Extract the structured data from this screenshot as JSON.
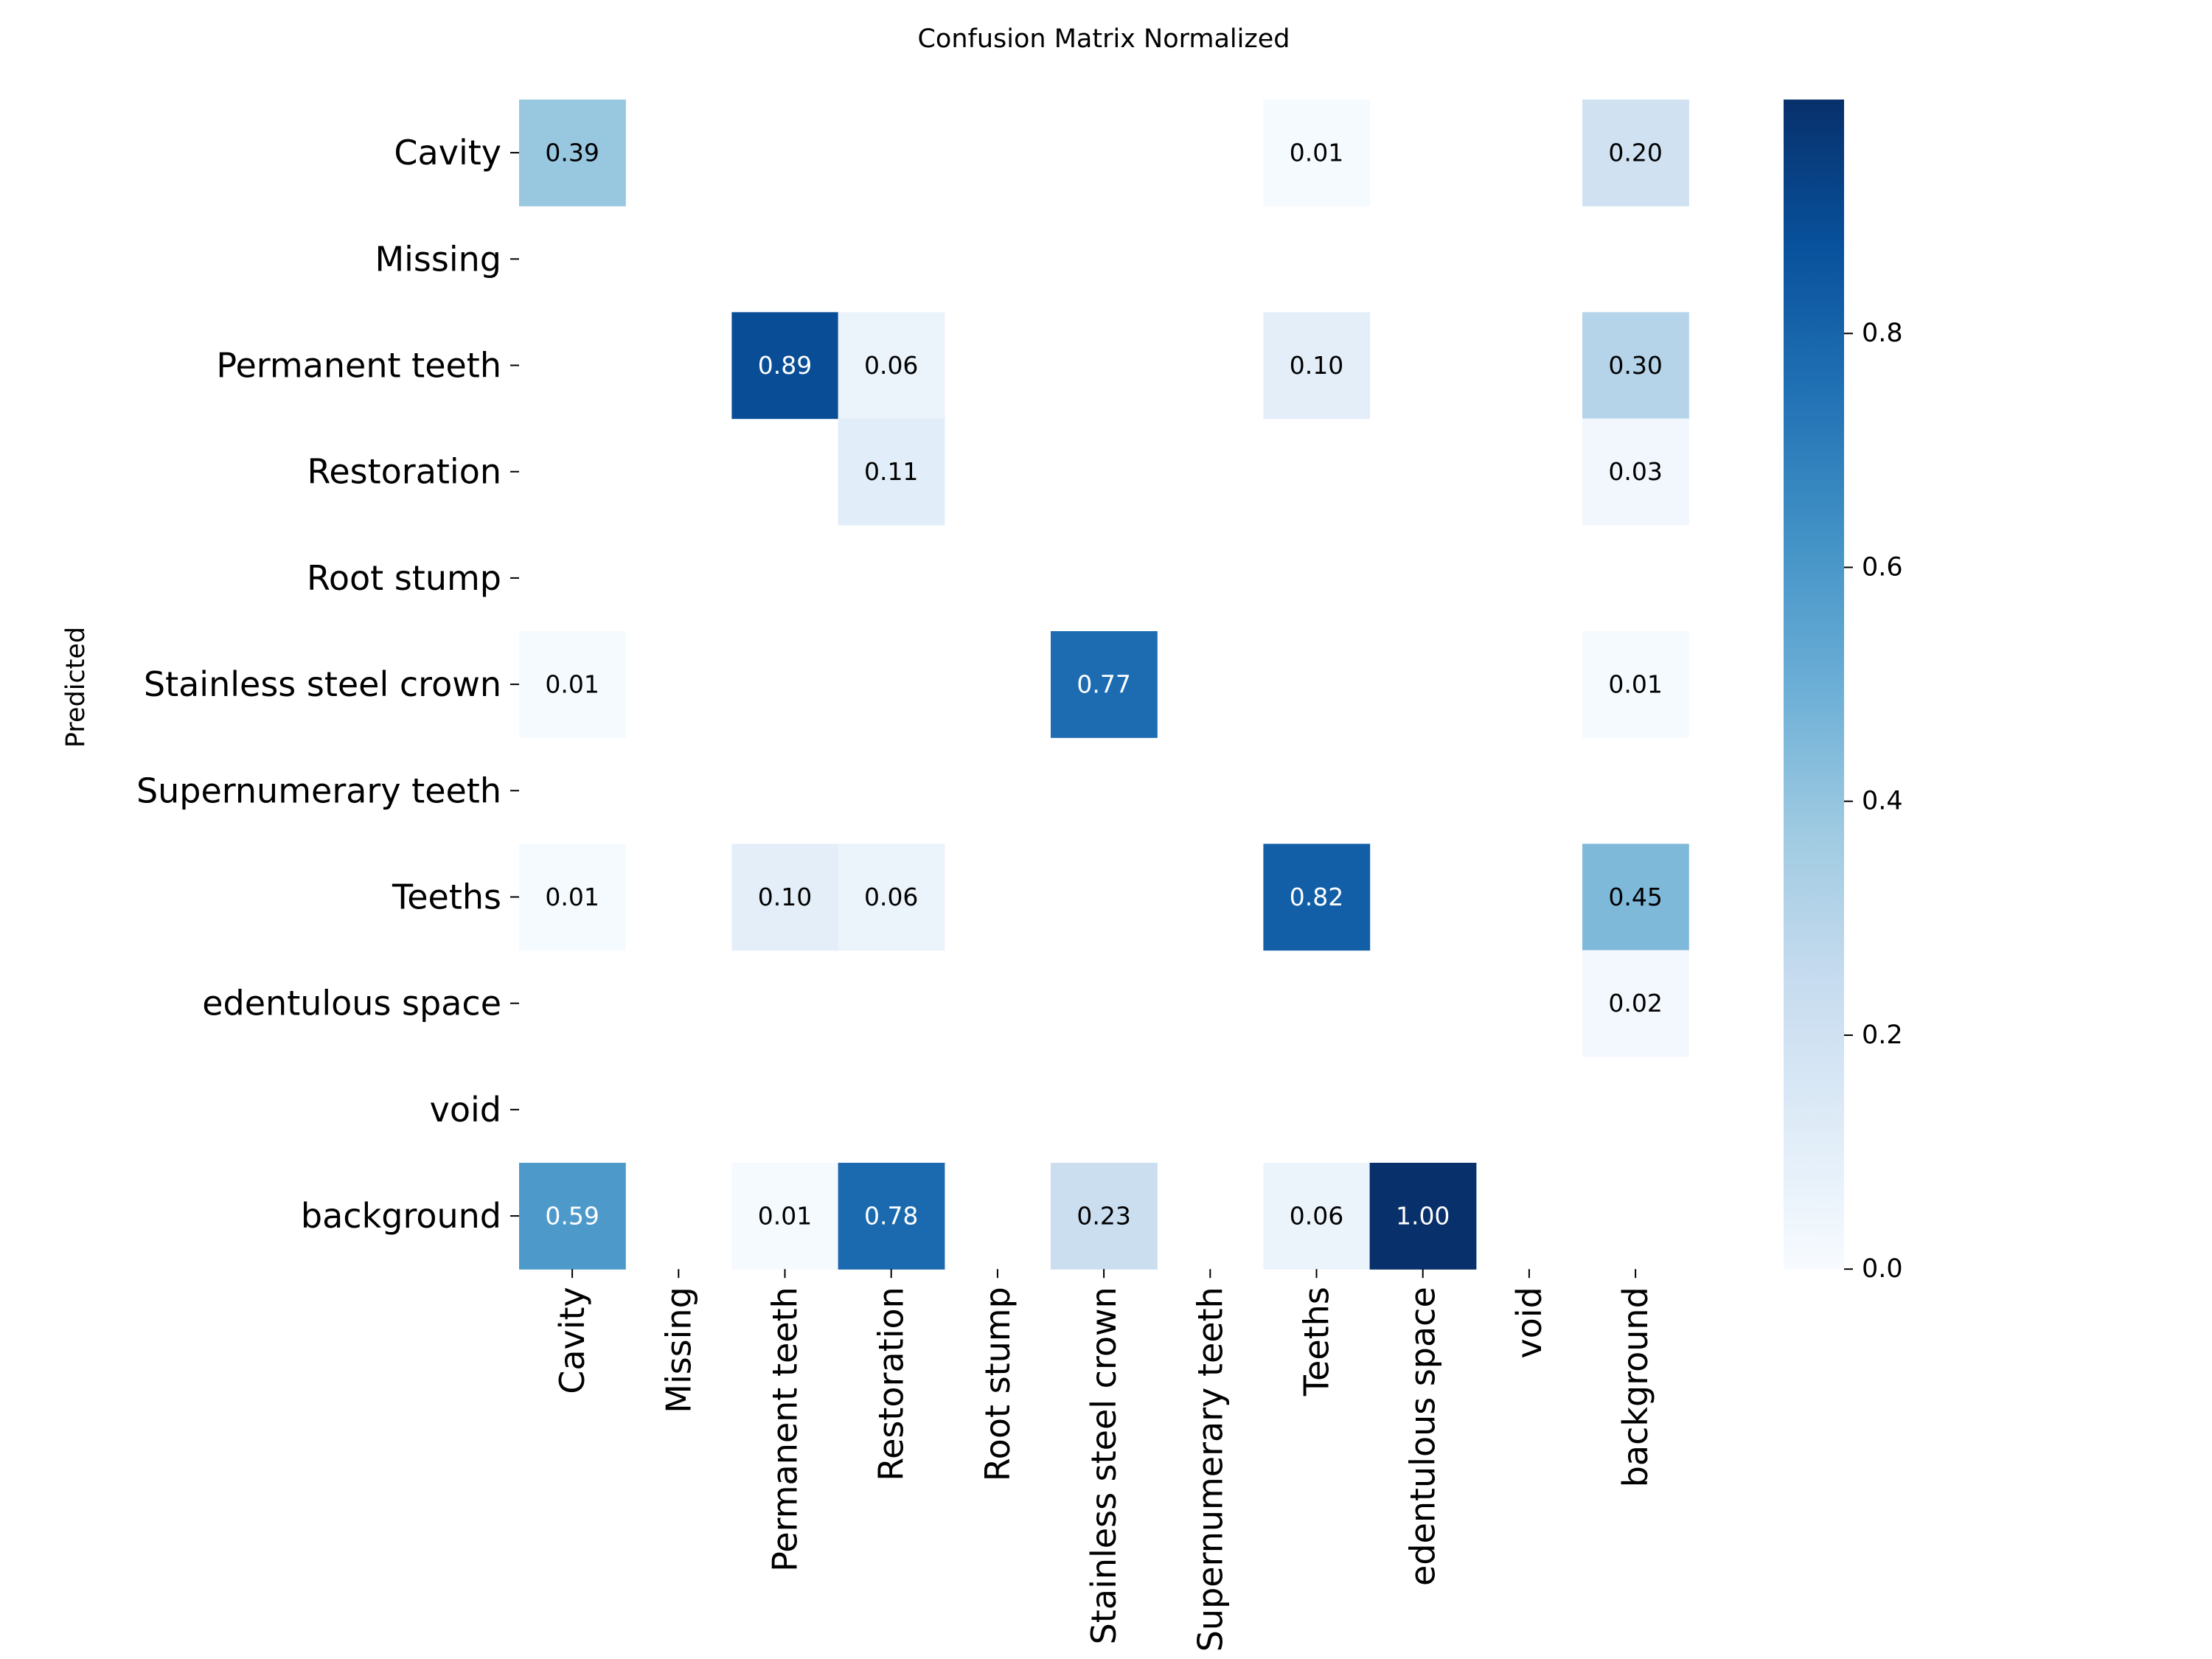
{
  "chart_data": {
    "type": "heatmap",
    "title": "Confusion Matrix Normalized",
    "ylabel": "Predicted",
    "xlabel": "",
    "row_labels": [
      "Cavity",
      "Missing",
      "Permanent teeth",
      "Restoration",
      "Root stump",
      "Stainless steel crown",
      "Supernumerary teeth",
      "Teeths",
      "edentulous space",
      "void",
      "background"
    ],
    "col_labels": [
      "Cavity",
      "Missing",
      "Permanent teeth",
      "Restoration",
      "Root stump",
      "Stainless steel crown",
      "Supernumerary teeth",
      "Teeths",
      "edentulous space",
      "void",
      "background"
    ],
    "values": [
      [
        0.39,
        null,
        null,
        null,
        null,
        null,
        null,
        0.01,
        null,
        null,
        0.2
      ],
      [
        null,
        null,
        null,
        null,
        null,
        null,
        null,
        null,
        null,
        null,
        null
      ],
      [
        null,
        null,
        0.89,
        0.06,
        null,
        null,
        null,
        0.1,
        null,
        null,
        0.3
      ],
      [
        null,
        null,
        null,
        0.11,
        null,
        null,
        null,
        null,
        null,
        null,
        0.03
      ],
      [
        null,
        null,
        null,
        null,
        null,
        null,
        null,
        null,
        null,
        null,
        null
      ],
      [
        0.01,
        null,
        null,
        null,
        null,
        0.77,
        null,
        null,
        null,
        null,
        0.01
      ],
      [
        null,
        null,
        null,
        null,
        null,
        null,
        null,
        null,
        null,
        null,
        null
      ],
      [
        0.01,
        null,
        0.1,
        0.06,
        null,
        null,
        null,
        0.82,
        null,
        null,
        0.45
      ],
      [
        null,
        null,
        null,
        null,
        null,
        null,
        null,
        null,
        null,
        null,
        0.02
      ],
      [
        null,
        null,
        null,
        null,
        null,
        null,
        null,
        null,
        null,
        null,
        null
      ],
      [
        0.59,
        null,
        0.01,
        0.78,
        null,
        0.23,
        null,
        0.06,
        1.0,
        null,
        null
      ]
    ],
    "value_format": "0.00",
    "colormap": "Blues",
    "colorbar": {
      "min": 0.0,
      "max": 1.0,
      "ticks": [
        0.0,
        0.2,
        0.4,
        0.6,
        0.8
      ],
      "tick_labels": [
        "0.0",
        "0.2",
        "0.4",
        "0.6",
        "0.8"
      ]
    },
    "grid": false
  }
}
